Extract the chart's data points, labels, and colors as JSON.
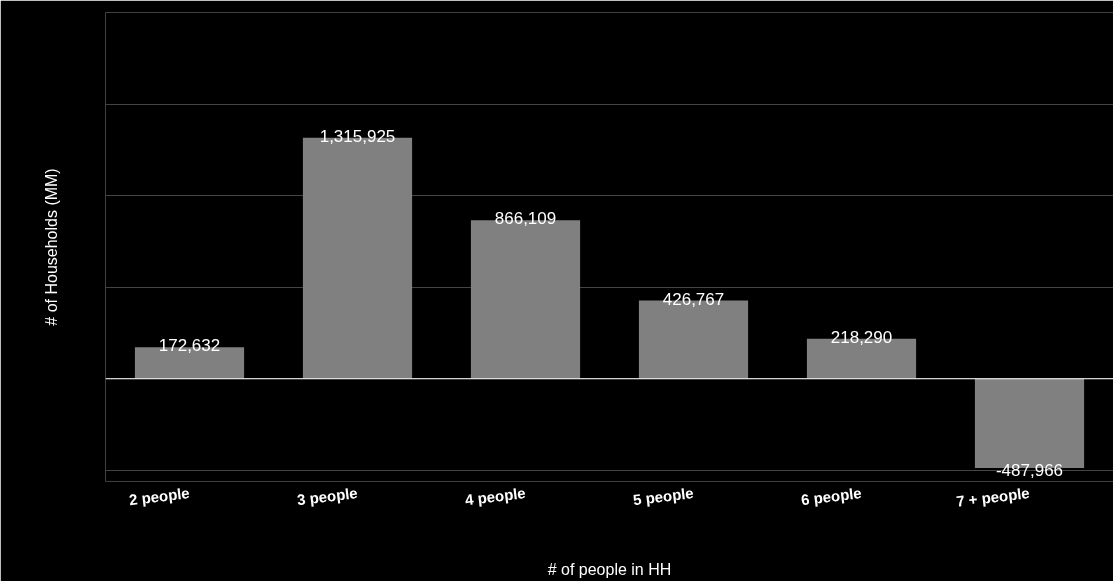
{
  "chart_data": {
    "type": "bar",
    "xlabel": "# of people in HH",
    "ylabel": "# of Households (MM)",
    "categories": [
      "2 people",
      "3 people",
      "4 people",
      "5 people",
      "6 people",
      "7 + people"
    ],
    "values": [
      172632,
      1315925,
      866109,
      426767,
      218290,
      -487966
    ],
    "value_labels": [
      "172,632",
      "1,315,925",
      "866,109",
      "426,767",
      "218,290",
      "-487,966"
    ],
    "color": "#808080",
    "grid": "y",
    "tick_labels": "x"
  }
}
